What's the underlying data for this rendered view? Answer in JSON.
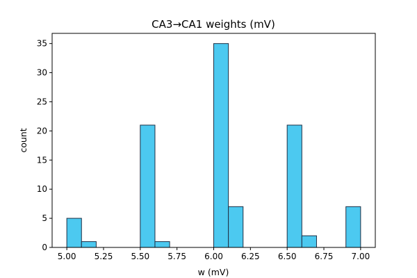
{
  "chart_data": {
    "type": "bar",
    "title": "CA3→CA1 weights (mV)",
    "xlabel": "w (mV)",
    "ylabel": "count",
    "xlim": [
      4.9,
      7.1
    ],
    "ylim": [
      0,
      36.75
    ],
    "grid": false,
    "bar_color": "#4cc9f0",
    "edge_color": "#1f2f44",
    "bins": [
      {
        "x0": 5.0,
        "x1": 5.1,
        "count": 5
      },
      {
        "x0": 5.1,
        "x1": 5.2,
        "count": 1
      },
      {
        "x0": 5.5,
        "x1": 5.6,
        "count": 21
      },
      {
        "x0": 5.6,
        "x1": 5.7,
        "count": 1
      },
      {
        "x0": 6.0,
        "x1": 6.1,
        "count": 35
      },
      {
        "x0": 6.1,
        "x1": 6.2,
        "count": 7
      },
      {
        "x0": 6.5,
        "x1": 6.6,
        "count": 21
      },
      {
        "x0": 6.6,
        "x1": 6.7,
        "count": 2
      },
      {
        "x0": 6.9,
        "x1": 7.0,
        "count": 7
      }
    ],
    "xticks": [
      {
        "value": 5.0,
        "label": "5.00"
      },
      {
        "value": 5.25,
        "label": "5.25"
      },
      {
        "value": 5.5,
        "label": "5.50"
      },
      {
        "value": 5.75,
        "label": "5.75"
      },
      {
        "value": 6.0,
        "label": "6.00"
      },
      {
        "value": 6.25,
        "label": "6.25"
      },
      {
        "value": 6.5,
        "label": "6.50"
      },
      {
        "value": 6.75,
        "label": "6.75"
      },
      {
        "value": 7.0,
        "label": "7.00"
      }
    ],
    "yticks": [
      {
        "value": 0,
        "label": "0"
      },
      {
        "value": 5,
        "label": "5"
      },
      {
        "value": 10,
        "label": "10"
      },
      {
        "value": 15,
        "label": "15"
      },
      {
        "value": 20,
        "label": "20"
      },
      {
        "value": 25,
        "label": "25"
      },
      {
        "value": 30,
        "label": "30"
      },
      {
        "value": 35,
        "label": "35"
      }
    ]
  }
}
